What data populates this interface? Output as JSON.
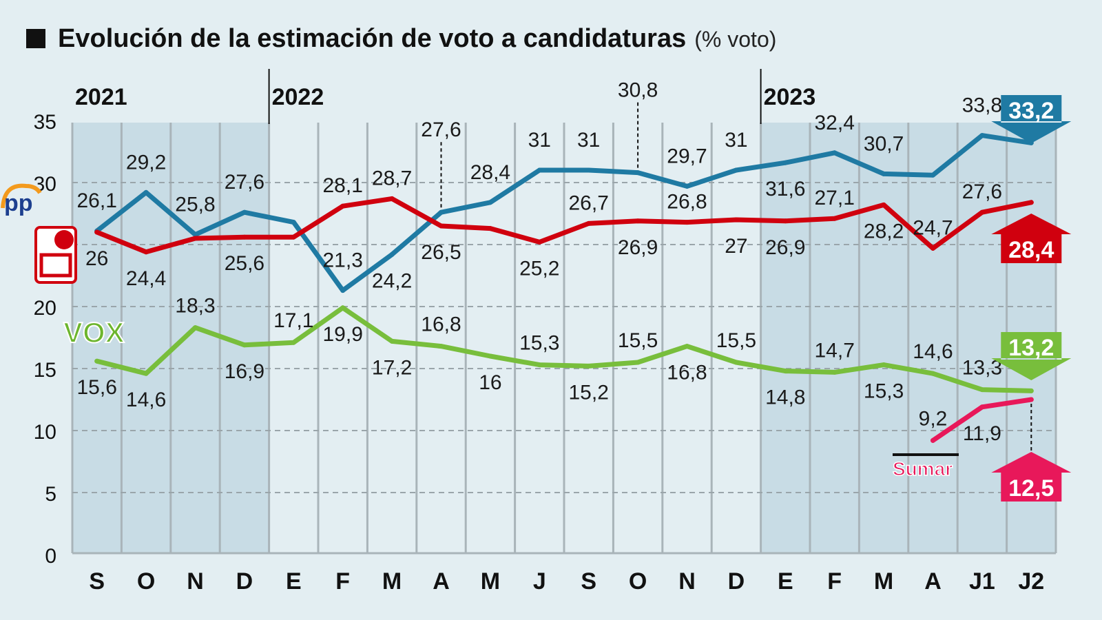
{
  "chart_data": {
    "type": "line",
    "title": "Evolución de la estimación de voto a candidaturas",
    "unit": "(% voto)",
    "years": [
      {
        "label": "2021",
        "from": 0,
        "to": 3
      },
      {
        "label": "2022",
        "from": 4,
        "to": 13
      },
      {
        "label": "2023",
        "from": 14,
        "to": 19
      }
    ],
    "categories": [
      "S",
      "O",
      "N",
      "D",
      "E",
      "F",
      "M",
      "A",
      "M",
      "J",
      "S",
      "O",
      "N",
      "D",
      "E",
      "F",
      "M",
      "A",
      "J1",
      "J2"
    ],
    "ylim": [
      0,
      35
    ],
    "yticks": [
      0,
      5,
      10,
      15,
      20,
      25,
      30,
      35
    ],
    "grid": true,
    "series": [
      {
        "name": "PP",
        "color": "#1f7aa3",
        "logo": "pp-logo",
        "values": [
          26.1,
          29.2,
          25.8,
          27.6,
          26.8,
          21.3,
          24.2,
          27.6,
          28.4,
          31,
          31,
          30.8,
          29.7,
          31,
          31.6,
          32.4,
          30.7,
          30.6,
          33.8,
          33.2
        ],
        "labels": [
          "26,1",
          "29,2",
          "25,8",
          "27,6",
          null,
          "21,3",
          "24,2",
          "27,6",
          "28,4",
          "31",
          "31",
          "30,8",
          "29,7",
          "31",
          "31,6",
          "32,4",
          "30,7",
          null,
          "33,8",
          null
        ],
        "final": "33,2",
        "trend": "down"
      },
      {
        "name": "PSOE",
        "color": "#d0000e",
        "logo": "psoe-logo",
        "values": [
          26,
          24.4,
          25.5,
          25.6,
          25.6,
          28.1,
          28.7,
          26.5,
          26.3,
          25.2,
          26.7,
          26.9,
          26.8,
          27,
          26.9,
          27.1,
          28.2,
          24.7,
          27.6,
          28.4
        ],
        "labels": [
          "26",
          "24,4",
          null,
          "25,6",
          null,
          "28,1",
          "28,7",
          "26,5",
          null,
          "25,2",
          "26,7",
          "26,9",
          "26,8",
          "27",
          "26,9",
          "27,1",
          "28,2",
          "24,7",
          "27,6",
          null
        ],
        "final": "28,4",
        "trend": "up"
      },
      {
        "name": "VOX",
        "color": "#78be3c",
        "logo": "vox-logo",
        "values": [
          15.6,
          14.6,
          18.3,
          16.9,
          17.1,
          19.9,
          17.2,
          16.8,
          16,
          15.3,
          15.2,
          15.5,
          16.8,
          15.5,
          14.8,
          14.7,
          15.3,
          14.6,
          13.3,
          13.2
        ],
        "labels": [
          "15,6",
          "14,6",
          "18,3",
          "16,9",
          "17,1",
          "19,9",
          "17,2",
          "16,8",
          "16",
          "15,3",
          "15,2",
          "15,5",
          "16,8",
          "15,5",
          "14,8",
          "14,7",
          "15,3",
          "14,6",
          "13,3",
          null
        ],
        "final": "13,2",
        "trend": "down"
      },
      {
        "name": "Sumar",
        "color": "#e8185a",
        "logo": "sumar-logo",
        "values": [
          null,
          null,
          null,
          null,
          null,
          null,
          null,
          null,
          null,
          null,
          null,
          null,
          null,
          null,
          null,
          null,
          null,
          9.2,
          11.9,
          12.5
        ],
        "labels": [
          null,
          null,
          null,
          null,
          null,
          null,
          null,
          null,
          null,
          null,
          null,
          null,
          null,
          null,
          null,
          null,
          null,
          "9,2",
          "11,9",
          null
        ],
        "final": "12,5",
        "trend": "up"
      }
    ]
  }
}
